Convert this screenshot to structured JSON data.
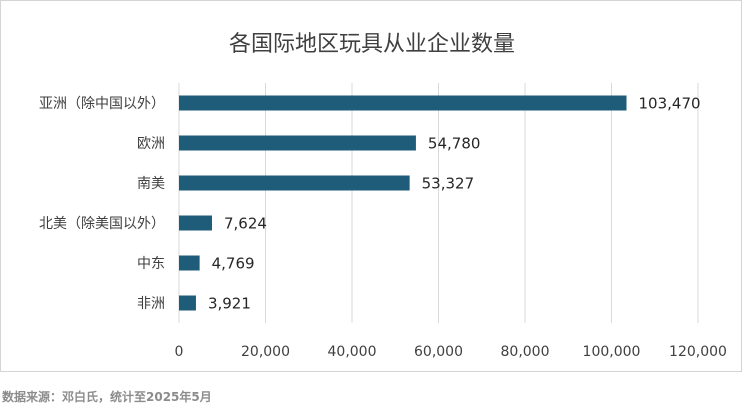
{
  "chart_data": {
    "type": "bar",
    "orientation": "horizontal",
    "title": "各国际地区玩具从业企业数量",
    "categories": [
      "亚洲（除中国以外）",
      "欧洲",
      "南美",
      "北美（除美国以外）",
      "中东",
      "非洲"
    ],
    "values": [
      103470,
      54780,
      53327,
      7624,
      4769,
      3921
    ],
    "value_labels": [
      "103,470",
      "54,780",
      "53,327",
      "7,624",
      "4,769",
      "3,921"
    ],
    "xlim": [
      0,
      120000
    ],
    "ticks": [
      0,
      20000,
      40000,
      60000,
      80000,
      100000,
      120000
    ],
    "tick_labels": [
      "0",
      "20,000",
      "40,000",
      "60,000",
      "80,000",
      "100,000",
      "120,000"
    ],
    "xlabel": "",
    "ylabel": "",
    "grid": true,
    "legend": "none",
    "bar_color": "#1f5c7a"
  },
  "source_note": "数据来源：邓白氏，统计至2025年5月"
}
